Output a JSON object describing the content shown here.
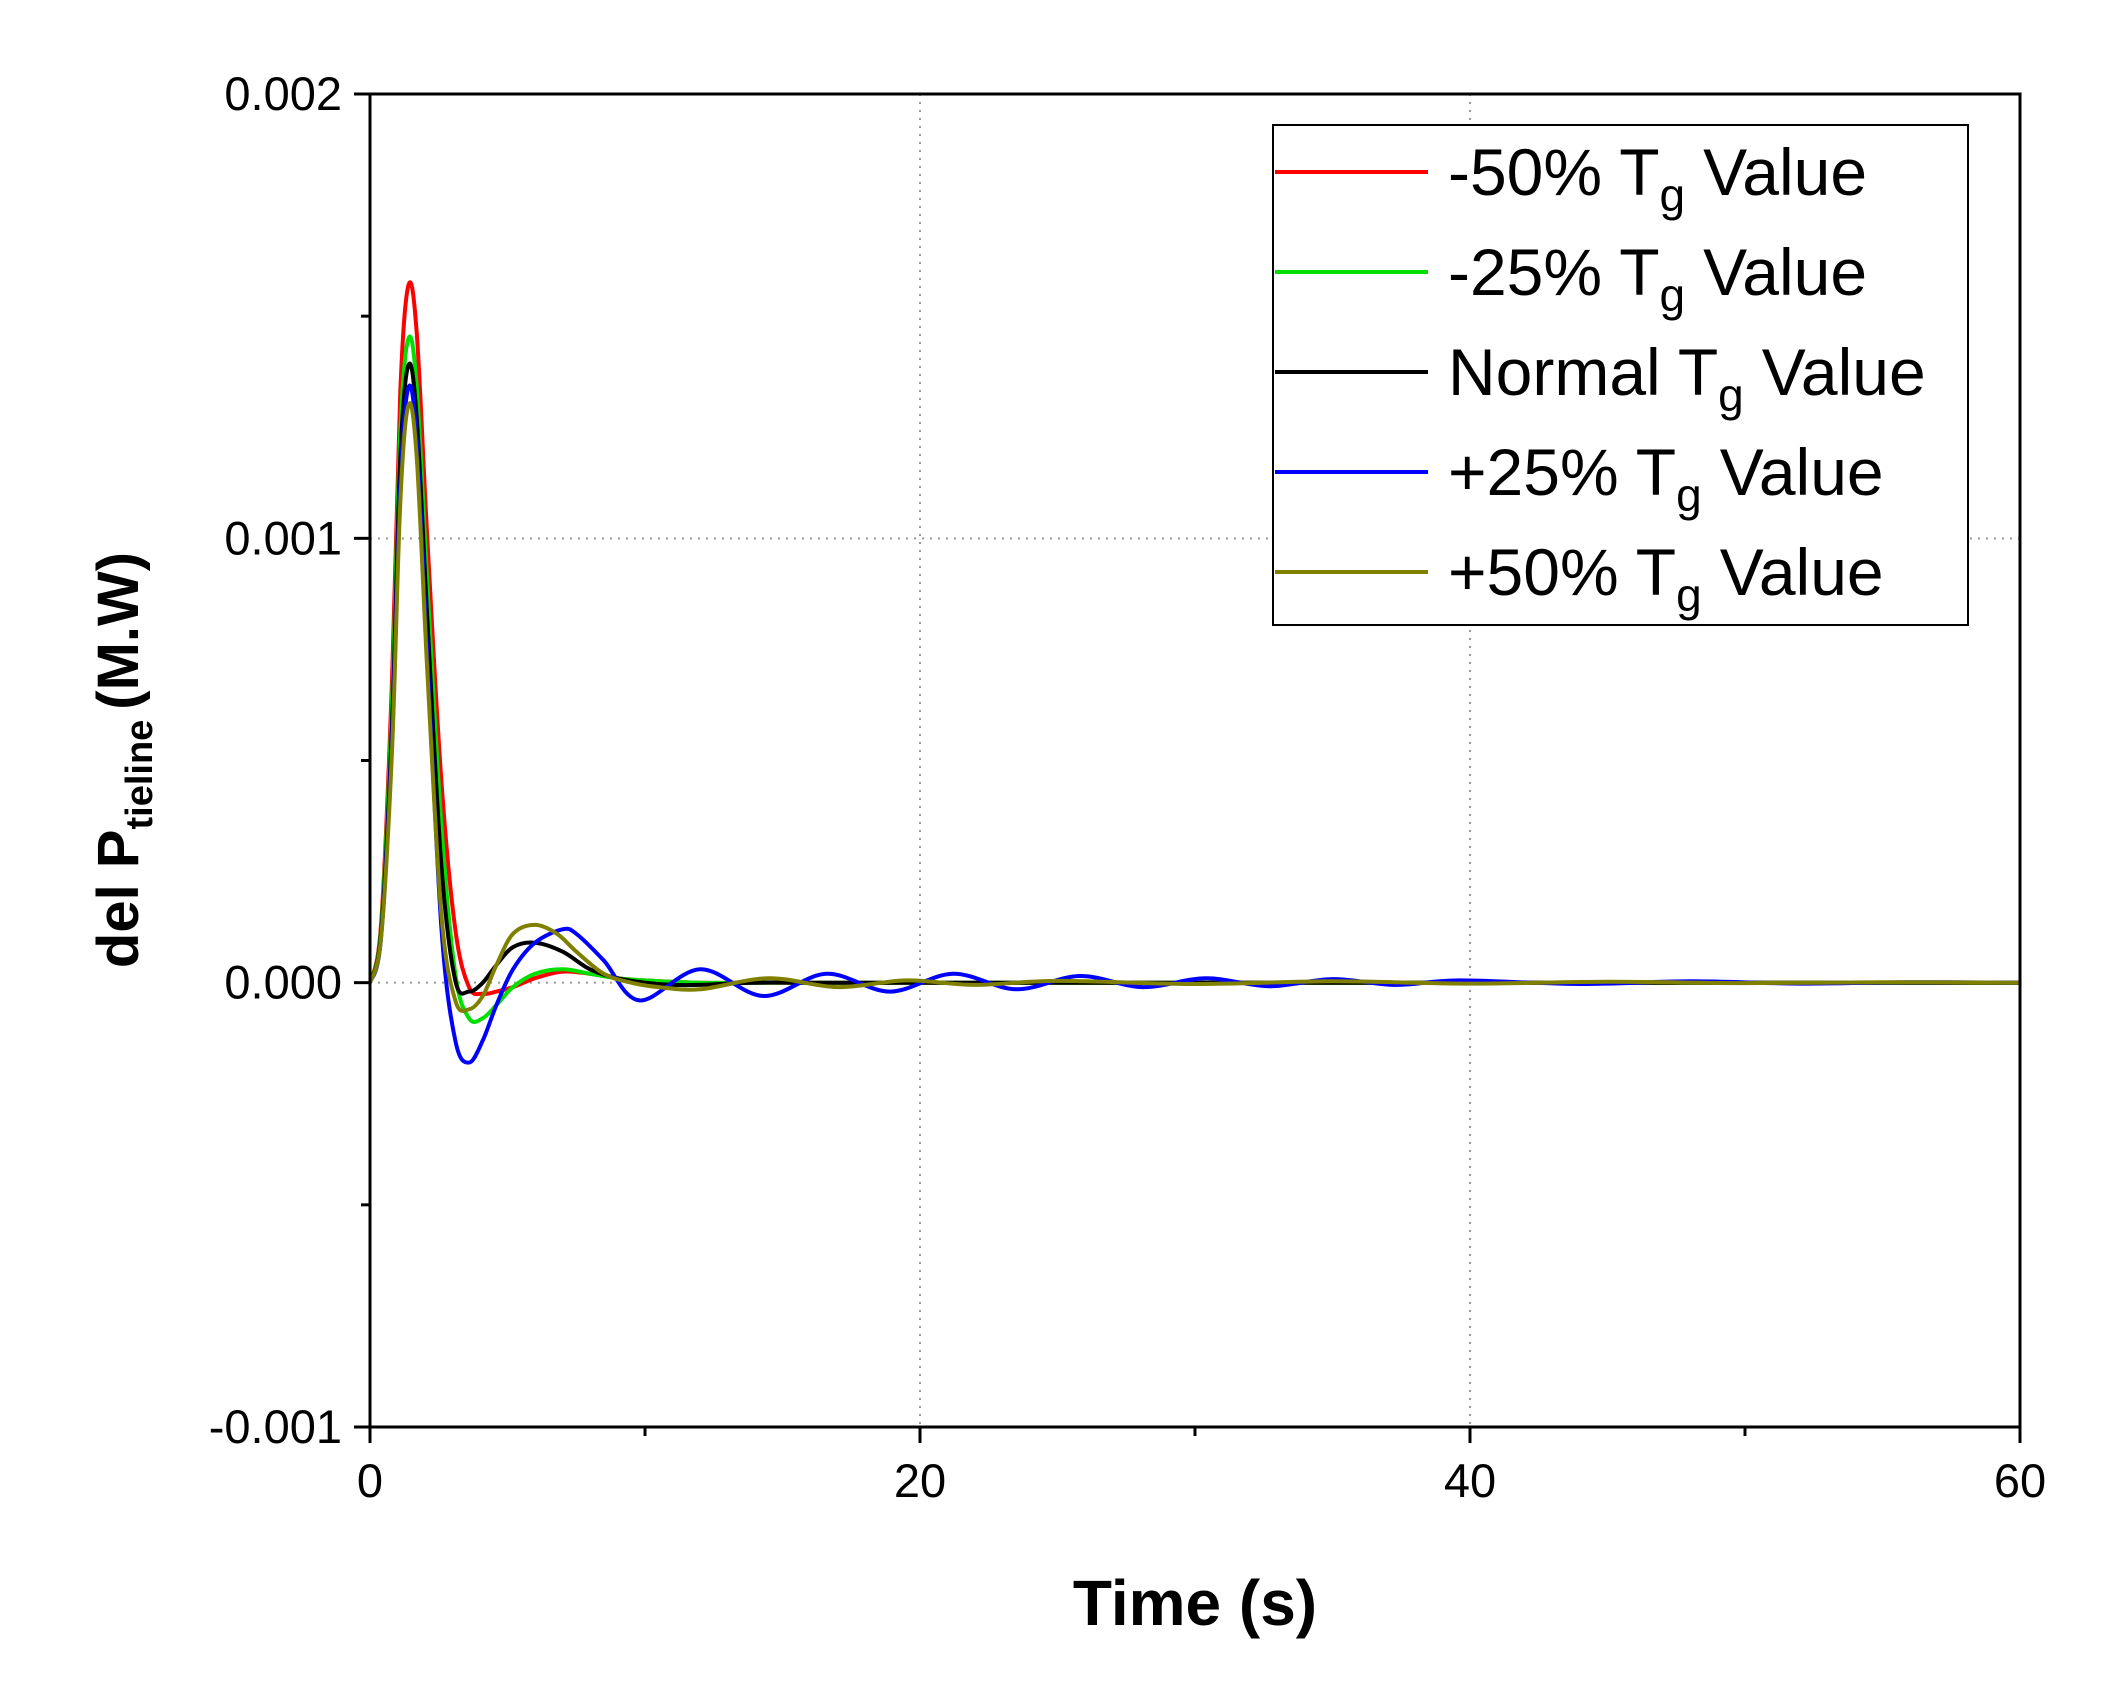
{
  "chart_data": {
    "type": "line",
    "title": "",
    "xlabel": "Time (s)",
    "ylabel": {
      "main": "del P",
      "sub": "tieline",
      "unit": "(M.W)"
    },
    "xlim": [
      0,
      60
    ],
    "ylim": [
      -0.001,
      0.002
    ],
    "xticks": [
      0,
      20,
      40,
      60
    ],
    "xtick_labels": [
      "0",
      "20",
      "40",
      "60"
    ],
    "yticks": [
      -0.001,
      0,
      0.001,
      0.002
    ],
    "ytick_labels": [
      "-0.001",
      "0.000",
      "0.001",
      "0.002"
    ],
    "grid": true,
    "legend": {
      "position": "top-right"
    },
    "series": [
      {
        "name": "-50% Tg Value",
        "legend": {
          "prefix": "-50% T",
          "sub": "g",
          "suffix": "Value"
        },
        "color": "#ff0000",
        "x": [
          0,
          0.4,
          0.8,
          1.1,
          1.4,
          1.7,
          2.1,
          2.6,
          3.1,
          3.6,
          4.1,
          4.6,
          5.2,
          6.0,
          7.0,
          8.0,
          9.0,
          10.0,
          12.0,
          15.0,
          20.0,
          30.0,
          40.0,
          50.0,
          60.0
        ],
        "values": [
          0,
          0.00013,
          0.00068,
          0.00133,
          0.00157,
          0.00146,
          0.00098,
          0.00045,
          0.00012,
          -1e-05,
          -2.5e-05,
          -2e-05,
          -1e-05,
          1e-05,
          2.5e-05,
          2e-05,
          1e-05,
          5e-06,
          0,
          0,
          0,
          0,
          0,
          0,
          0
        ]
      },
      {
        "name": "-25% Tg Value",
        "legend": {
          "prefix": "-25% T",
          "sub": "g",
          "suffix": "Value"
        },
        "color": "#00e000",
        "x": [
          0,
          0.4,
          0.8,
          1.1,
          1.4,
          1.7,
          2.1,
          2.6,
          3.1,
          3.6,
          4.1,
          4.6,
          5.2,
          6.0,
          7.0,
          8.0,
          9.0,
          10.0,
          12.0,
          15.0,
          20.0,
          30.0,
          40.0,
          50.0,
          60.0
        ],
        "values": [
          0,
          0.00012,
          0.00063,
          0.00124,
          0.00145,
          0.00134,
          0.00088,
          0.00035,
          2e-05,
          -8e-05,
          -8e-05,
          -5e-05,
          -1e-05,
          2e-05,
          3e-05,
          2e-05,
          1e-05,
          5e-06,
          0,
          0,
          0,
          0,
          0,
          0,
          0
        ]
      },
      {
        "name": "Normal Tg Value",
        "legend": {
          "prefix": "Normal  T",
          "sub": "g",
          "suffix": "Value"
        },
        "color": "#000000",
        "x": [
          0,
          0.4,
          0.8,
          1.1,
          1.4,
          1.7,
          2.1,
          2.6,
          3.1,
          3.6,
          4.1,
          4.6,
          5.2,
          6.0,
          7.0,
          8.0,
          9.0,
          10.0,
          11.0,
          12.0,
          14.0,
          16.0,
          20.0,
          30.0,
          40.0,
          50.0,
          60.0
        ],
        "values": [
          0,
          0.00011,
          0.00058,
          0.00118,
          0.00139,
          0.00127,
          0.0008,
          0.00026,
          5e-06,
          -2e-05,
          0,
          4e-05,
          8e-05,
          9e-05,
          7e-05,
          3e-05,
          1e-05,
          0,
          -5e-06,
          -5e-06,
          0,
          0,
          0,
          0,
          0,
          0,
          0
        ]
      },
      {
        "name": "+25% Tg Value",
        "legend": {
          "prefix": "+25% T",
          "sub": "g",
          "suffix": "Value"
        },
        "color": "#0000ff",
        "x": [
          0,
          0.4,
          0.8,
          1.1,
          1.4,
          1.7,
          2.1,
          2.6,
          3.1,
          3.6,
          4.1,
          4.6,
          5.2,
          6.0,
          7.0,
          7.5,
          8.5,
          9.8,
          12.0,
          14.3,
          16.6,
          18.9,
          21.2,
          23.5,
          25.8,
          28.1,
          30.4,
          32.7,
          35.0,
          37.3,
          39.6,
          44.0,
          48.0,
          52.0,
          56.0,
          60.0
        ],
        "values": [
          0,
          0.0001,
          0.00055,
          0.00112,
          0.00134,
          0.00122,
          0.00072,
          0.00012,
          -0.00013,
          -0.00018,
          -0.00013,
          -5e-05,
          3e-05,
          9e-05,
          0.00012,
          0.00011,
          5e-05,
          -4e-05,
          3e-05,
          -3e-05,
          2e-05,
          -2e-05,
          2e-05,
          -1.5e-05,
          1.5e-05,
          -1e-05,
          1e-05,
          -8e-06,
          8e-06,
          -5e-06,
          5e-06,
          -3e-06,
          3e-06,
          -2e-06,
          1e-06,
          0
        ]
      },
      {
        "name": "+50% Tg Value",
        "legend": {
          "prefix": "+50% T",
          "sub": "g",
          "suffix": "Value"
        },
        "color": "#808000",
        "x": [
          0,
          0.4,
          0.8,
          1.1,
          1.4,
          1.7,
          2.1,
          2.6,
          3.1,
          3.6,
          4.1,
          4.6,
          5.2,
          6.0,
          6.8,
          7.5,
          8.5,
          9.5,
          10.5,
          12.0,
          14.5,
          17.0,
          19.5,
          22.0,
          25.0,
          30.0,
          35.0,
          40.0,
          45.0,
          50.0,
          55.0,
          60.0
        ],
        "values": [
          0,
          0.0001,
          0.00052,
          0.00108,
          0.0013,
          0.00118,
          0.00068,
          0.00015,
          -4e-05,
          -6e-05,
          -3e-05,
          4e-05,
          0.00011,
          0.00013,
          0.00011,
          7e-05,
          2e-05,
          0,
          -1e-05,
          -1.5e-05,
          1e-05,
          -1e-05,
          5e-06,
          -5e-06,
          4e-06,
          -3e-06,
          3e-06,
          -2e-06,
          2e-06,
          -1e-06,
          1e-06,
          0
        ]
      }
    ]
  }
}
